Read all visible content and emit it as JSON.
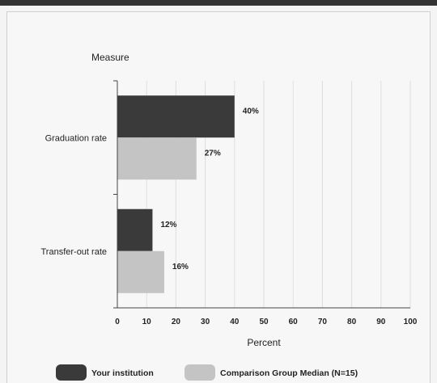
{
  "chart_data": {
    "type": "bar",
    "orientation": "horizontal",
    "categories": [
      "Graduation rate",
      "Transfer-out rate"
    ],
    "series": [
      {
        "name": "Your institution",
        "values": [
          40,
          12
        ],
        "color": "#3a3a3a"
      },
      {
        "name": "Comparison Group Median (N=15)",
        "values": [
          27,
          16
        ],
        "color": "#c4c4c4"
      }
    ],
    "data_labels": [
      [
        "40%",
        "12%"
      ],
      [
        "27%",
        "16%"
      ]
    ],
    "title": "Measure",
    "xlabel": "Percent",
    "ylabel": "",
    "xlim": [
      0,
      100
    ],
    "xticks": [
      "0",
      "10",
      "20",
      "30",
      "40",
      "50",
      "60",
      "70",
      "80",
      "90",
      "100"
    ],
    "grid": true,
    "legend_position": "bottom"
  }
}
